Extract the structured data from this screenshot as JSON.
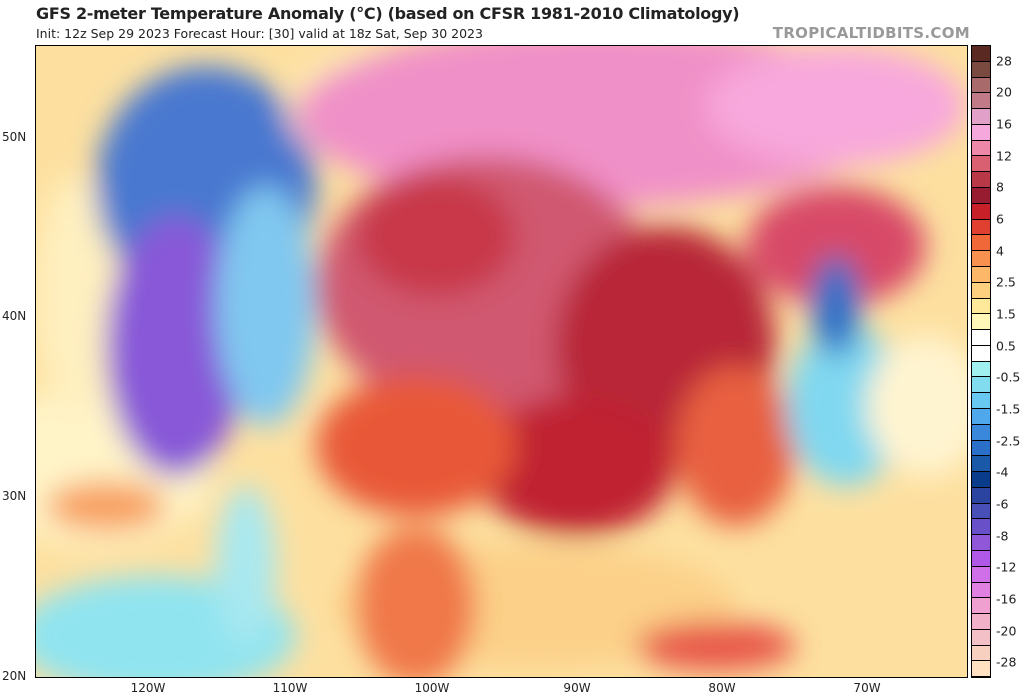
{
  "header": {
    "title": "GFS 2-meter Temperature Anomaly (°C) (based on CFSR 1981-2010 Climatology)",
    "subtitle": "Init: 12z Sep 29 2023   Forecast Hour: [30]   valid at 18z Sat, Sep 30 2023",
    "brand": "TROPICALTIDBITS.COM"
  },
  "axes": {
    "lat_labels": [
      "50N",
      "40N",
      "30N",
      "20N"
    ],
    "lon_labels": [
      "120W",
      "110W",
      "100W",
      "90W",
      "80W",
      "70W"
    ]
  },
  "colorbar": {
    "labels": [
      "28",
      "20",
      "16",
      "12",
      "8",
      "6",
      "4",
      "2.5",
      "1.5",
      "0.5",
      "-0.5",
      "-1.5",
      "-2.5",
      "-4",
      "-6",
      "-8",
      "-12",
      "-16",
      "-20",
      "-28"
    ],
    "colors": [
      "#5a2a22",
      "#7a4a40",
      "#a86a6a",
      "#c07a88",
      "#e0a0c8",
      "#f4a8dc",
      "#ee88a8",
      "#d86070",
      "#b83848",
      "#981c30",
      "#c82028",
      "#e04030",
      "#f06838",
      "#f89050",
      "#fcb868",
      "#fdd080",
      "#fee89a",
      "#fff8b8",
      "#ffffff",
      "#ffffff",
      "#a0f0f0",
      "#80dcee",
      "#68c8f0",
      "#50a8ec",
      "#3a88dc",
      "#2a70c8",
      "#1a58a8",
      "#0a3c8c",
      "#2a44a0",
      "#4850b8",
      "#6850c8",
      "#9058d8",
      "#b058e8",
      "#d070e8",
      "#e080e0",
      "#f0a0d0",
      "#f0b0c8",
      "#f4c0c8",
      "#f8d0c0",
      "#ffe0c0"
    ]
  }
}
